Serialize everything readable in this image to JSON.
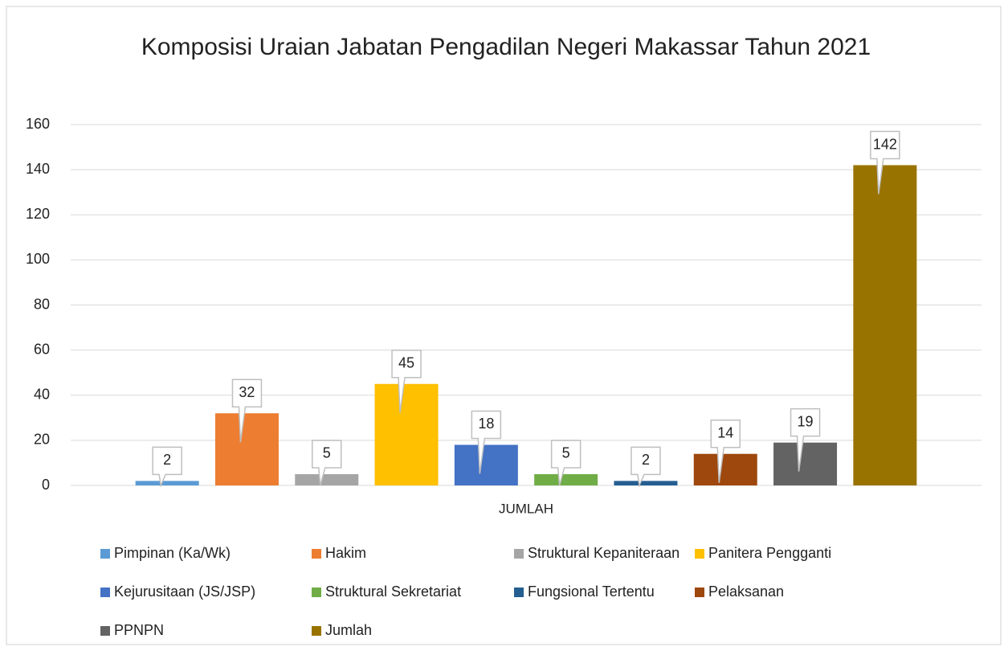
{
  "chart_data": {
    "type": "bar",
    "title": "Komposisi Uraian Jabatan Pengadilan Negeri Makassar Tahun 2021",
    "categories": [
      "JUMLAH"
    ],
    "series": [
      {
        "name": "Pimpinan (Ka/Wk)",
        "color": "#5b9bd5",
        "values": [
          2
        ]
      },
      {
        "name": "Hakim",
        "color": "#ed7d31",
        "values": [
          32
        ]
      },
      {
        "name": "Struktural Kepaniteraan",
        "color": "#a5a5a5",
        "values": [
          5
        ]
      },
      {
        "name": "Panitera Pengganti",
        "color": "#ffc000",
        "values": [
          45
        ]
      },
      {
        "name": "Kejurusitaan (JS/JSP)",
        "color": "#4472c4",
        "values": [
          18
        ]
      },
      {
        "name": "Struktural Sekretariat",
        "color": "#70ad47",
        "values": [
          5
        ]
      },
      {
        "name": "Fungsional Tertentu",
        "color": "#255e91",
        "values": [
          2
        ]
      },
      {
        "name": "Pelaksanan",
        "color": "#9e480e",
        "values": [
          14
        ]
      },
      {
        "name": "PPNPN",
        "color": "#636363",
        "values": [
          19
        ]
      },
      {
        "name": "Jumlah",
        "color": "#997300",
        "values": [
          142
        ]
      }
    ],
    "ylim": [
      0,
      160
    ],
    "yticks": [
      0,
      20,
      40,
      60,
      80,
      100,
      120,
      140,
      160
    ],
    "grid": true,
    "legend": "bottom"
  }
}
